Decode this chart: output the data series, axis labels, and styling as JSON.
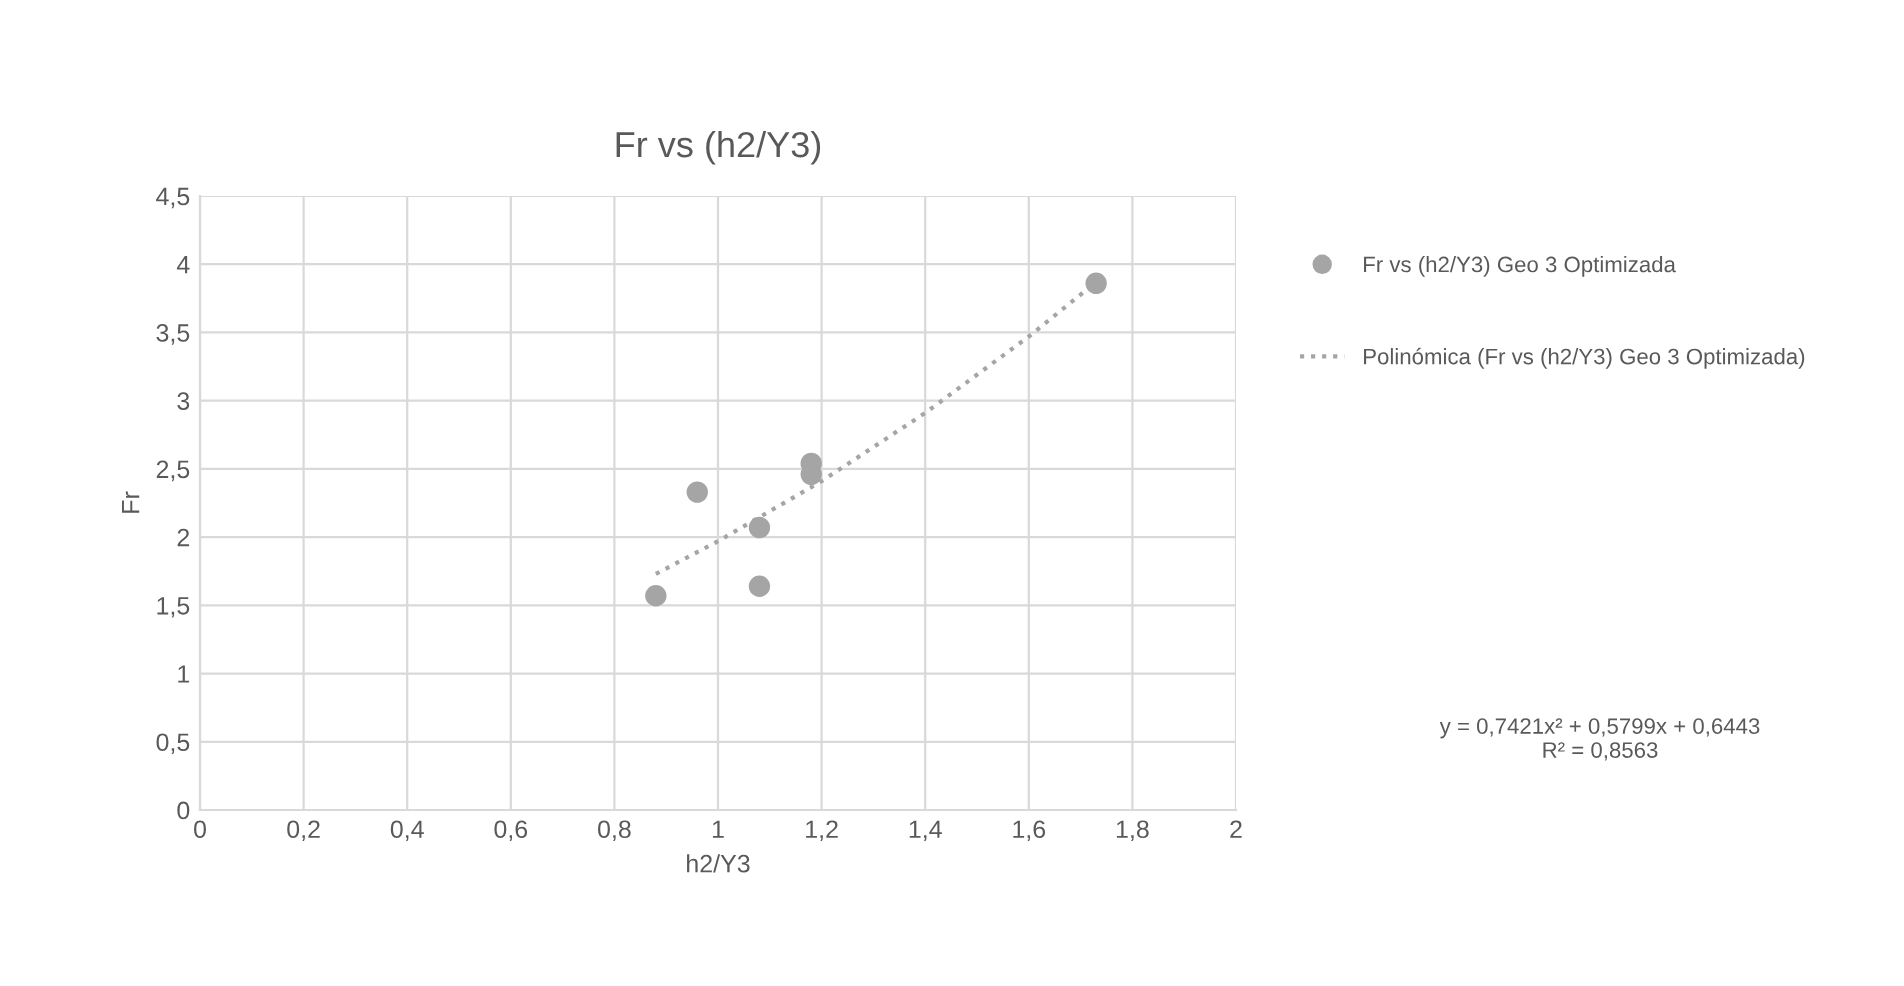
{
  "chart_data": {
    "type": "scatter",
    "title": "Fr vs (h2/Y3)",
    "xlabel": "h2/Y3",
    "ylabel": "Fr",
    "series": [
      {
        "name": "Fr vs (h2/Y3) Geo 3 Optimizada",
        "color": "#a5a5a5",
        "marker": "circle",
        "x": [
          0.88,
          0.96,
          1.08,
          1.08,
          1.18,
          1.18,
          1.73
        ],
        "values": [
          1.57,
          2.33,
          2.07,
          1.64,
          2.54,
          2.46,
          3.86
        ]
      },
      {
        "name": "Polinómica (Fr vs (h2/Y3) Geo 3 Optimizada)",
        "type": "line",
        "color": "#a5a5a5",
        "line_style": "dotted",
        "marker": "none",
        "x": [
          0.88,
          1.0,
          1.2,
          1.4,
          1.6,
          1.73
        ],
        "values": [
          1.73,
          1.97,
          2.41,
          2.91,
          3.47,
          3.87
        ]
      }
    ],
    "xlim": [
      0,
      2
    ],
    "xticks": [
      0,
      {
        "value": 0.2,
        "label": "0,2"
      },
      {
        "value": 0.4,
        "label": "0,4"
      },
      {
        "value": 0.6,
        "label": "0,6"
      },
      {
        "value": 0.8,
        "label": "0,8"
      },
      1,
      {
        "value": 1.2,
        "label": "1,2"
      },
      {
        "value": 1.4,
        "label": "1,4"
      },
      {
        "value": 1.6,
        "label": "1,6"
      },
      {
        "value": 1.8,
        "label": "1,8"
      },
      2
    ],
    "ylim": [
      0,
      4.5
    ],
    "yticks": [
      0,
      {
        "value": 0.5,
        "label": "0,5"
      },
      1,
      {
        "value": 1.5,
        "label": "1,5"
      },
      2,
      {
        "value": 2.5,
        "label": "2,5"
      },
      3,
      {
        "value": 3.5,
        "label": "3,5"
      },
      4,
      {
        "value": 4.5,
        "label": "4,5"
      }
    ],
    "grid": true,
    "legend": "right",
    "annotations": [
      "y = 0,7421x² + 0,5799x + 0,6443\nR² = 0,8563"
    ]
  }
}
